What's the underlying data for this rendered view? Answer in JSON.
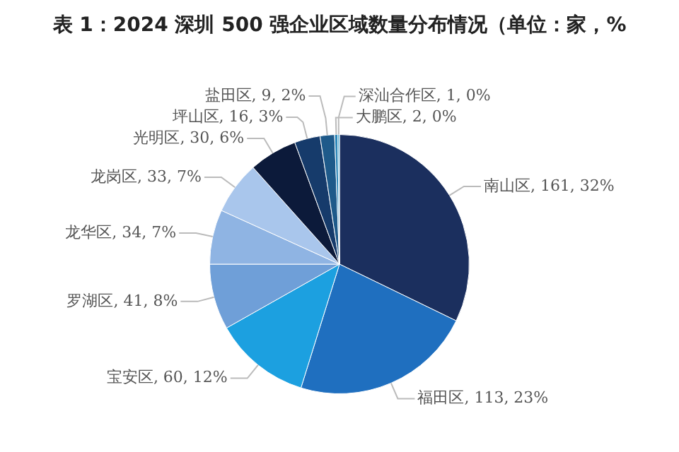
{
  "chart_data": {
    "type": "pie",
    "title": "表 1：2024 深圳 500 强企业区域数量分布情况（单位：家，%",
    "categories": [
      "南山区",
      "福田区",
      "宝安区",
      "罗湖区",
      "龙华区",
      "龙岗区",
      "光明区",
      "坪山区",
      "盐田区",
      "大鹏区",
      "深汕合作区"
    ],
    "values": [
      161,
      113,
      60,
      41,
      34,
      33,
      30,
      16,
      9,
      2,
      1
    ],
    "value_labels": [
      "161, 32%",
      "113, 23%",
      "60, 12%",
      "41, 8%",
      "34, 7%",
      "33, 7%",
      "30, 6%",
      "16, 3%",
      "9, 2%",
      "2, 0%",
      "1, 0%"
    ],
    "colors": [
      "#1b2f5e",
      "#1f6fbf",
      "#1ca0e0",
      "#6f9fd8",
      "#8fb4e3",
      "#a9c6ec",
      "#0c1a3a",
      "#163b6b",
      "#1e5a8a",
      "#2a86b8",
      "#3aa5cf"
    ],
    "legend": false
  }
}
